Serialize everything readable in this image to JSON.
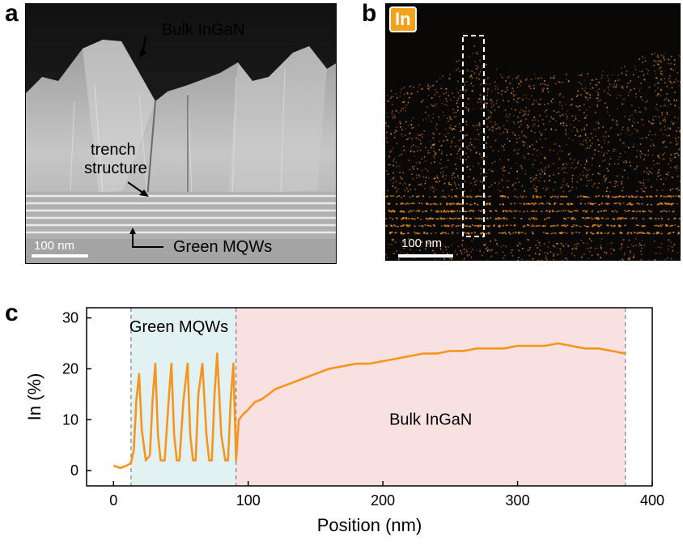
{
  "panel_labels": {
    "a": "a",
    "b": "b",
    "c": "c"
  },
  "panel_a": {
    "label_bulk": "Bulk InGaN",
    "label_trench_1": "trench",
    "label_trench_2": "structure",
    "label_mqws": "Green MQWs",
    "scale_bar": "100 nm"
  },
  "panel_b": {
    "element_badge": "In",
    "scale_bar": "100 nm",
    "badge_color": "#f5a21b"
  },
  "chart_data": {
    "type": "line",
    "title": "",
    "xlabel": "Position (nm)",
    "ylabel": "In (%)",
    "xlim": [
      -20,
      400
    ],
    "ylim": [
      -3,
      32
    ],
    "xticks": [
      0,
      100,
      200,
      300,
      400
    ],
    "yticks": [
      0,
      10,
      20,
      30
    ],
    "grid": false,
    "line_color": "#f7941d",
    "regions": [
      {
        "name": "Green MQWs",
        "x": [
          13,
          91
        ],
        "color": "#e2f1f1"
      },
      {
        "name": "Bulk InGaN",
        "x": [
          91,
          380
        ],
        "color": "#f9e1e1"
      }
    ],
    "boundaries": [
      13,
      91,
      380
    ],
    "series": [
      {
        "name": "In",
        "x": [
          0,
          5,
          10,
          13,
          15,
          17,
          19,
          21,
          24,
          27,
          29,
          31,
          33,
          35,
          38,
          41,
          43,
          45,
          47,
          49,
          52,
          55,
          57,
          59,
          61,
          63,
          66,
          69,
          71,
          73,
          75,
          77,
          80,
          83,
          85,
          87,
          89,
          91,
          93,
          96,
          100,
          105,
          110,
          115,
          120,
          130,
          140,
          150,
          160,
          170,
          180,
          190,
          200,
          210,
          220,
          230,
          240,
          250,
          260,
          270,
          280,
          290,
          300,
          310,
          320,
          330,
          340,
          350,
          360,
          370,
          380
        ],
        "values": [
          1,
          0.5,
          1,
          1.5,
          4,
          14,
          19,
          8,
          2,
          3,
          14,
          21,
          7,
          2,
          2,
          14,
          21,
          7,
          2,
          2,
          14,
          21,
          7,
          2,
          2,
          15,
          21,
          7,
          2,
          2,
          15,
          23,
          7,
          2,
          2,
          14,
          21,
          2,
          10,
          11,
          12,
          13.5,
          14,
          15,
          16,
          17,
          18,
          19,
          20,
          20.5,
          21,
          21,
          21.5,
          22,
          22.5,
          23,
          23,
          23.5,
          23.5,
          24,
          24,
          24,
          24.5,
          24.5,
          24.5,
          25,
          24.5,
          24,
          24,
          23.5,
          23
        ]
      }
    ]
  }
}
